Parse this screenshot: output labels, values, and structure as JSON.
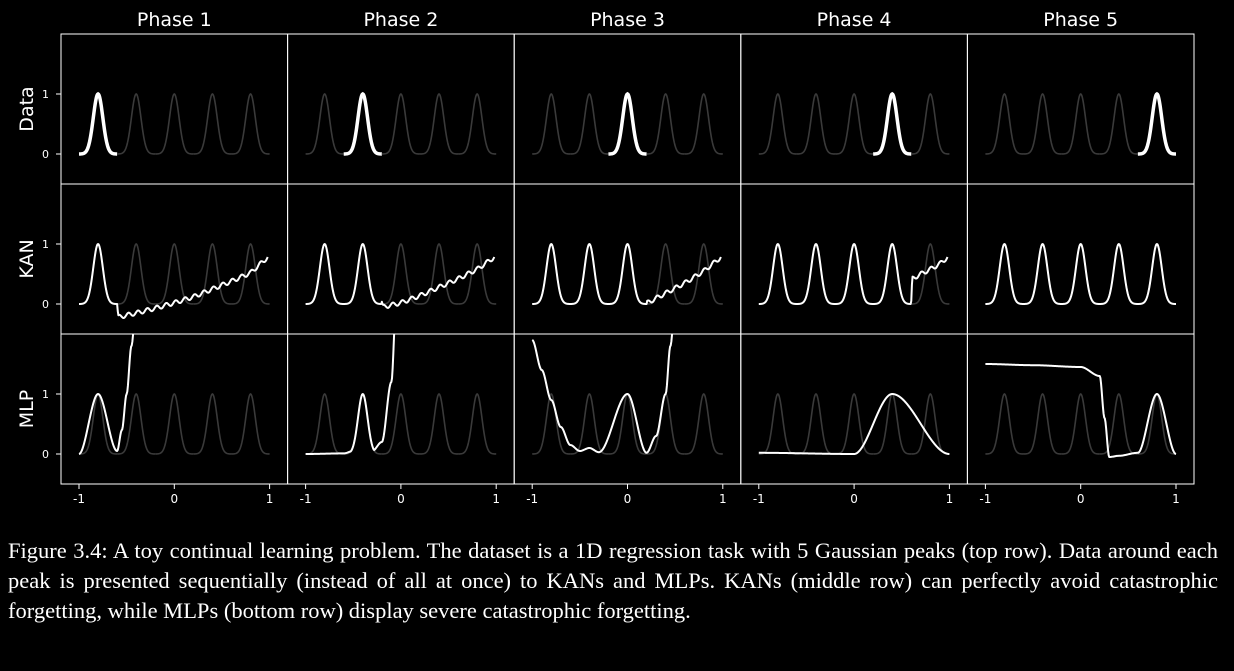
{
  "figure": {
    "column_titles": [
      "Phase 1",
      "Phase 2",
      "Phase 3",
      "Phase 4",
      "Phase 5"
    ],
    "row_labels": [
      "Data",
      "KAN",
      "MLP"
    ],
    "x_ticks": [
      "-1",
      "0",
      "1"
    ],
    "y_ticks": [
      "0",
      "1"
    ]
  },
  "caption": {
    "label": "Figure 3.4:",
    "text": "A toy continual learning problem. The dataset is a 1D regression task with 5 Gaussian peaks (top row). Data around each peak is presented sequentially (instead of all at once) to KANs and MLPs. KANs (middle row) can perfectly avoid catastrophic forgetting, while MLPs (bottom row) display severe catastrophic forgetting."
  },
  "colors": {
    "background": "#000000",
    "axes": "#ffffff",
    "faint_peaks": "#3a3a3a",
    "highlight": "#ffffff"
  },
  "chart_data": {
    "type": "line",
    "layout": "grid 3 rows x 5 columns",
    "xlim": [
      -1,
      1
    ],
    "ylim": [
      -0.5,
      2
    ],
    "grid": false,
    "peak_centers": [
      -0.8,
      -0.4,
      0.0,
      0.4,
      0.8
    ],
    "peak_sigma": 0.05,
    "panels": {
      "Data": [
        {
          "phase": 1,
          "highlighted_peak": 1
        },
        {
          "phase": 2,
          "highlighted_peak": 2
        },
        {
          "phase": 3,
          "highlighted_peak": 3
        },
        {
          "phase": 4,
          "highlighted_peak": 4
        },
        {
          "phase": 5,
          "highlighted_peak": 5
        }
      ],
      "KAN": [
        {
          "phase": 1,
          "x": [
            -1,
            -0.6,
            -0.59,
            -0.4,
            -0.2,
            0,
            0.2,
            0.4,
            0.6,
            0.8,
            0.98
          ],
          "y": [
            0,
            0.02,
            -0.22,
            -0.15,
            -0.07,
            0.02,
            0.12,
            0.25,
            0.38,
            0.52,
            0.78
          ]
        },
        {
          "phase": 2,
          "x": [
            -1,
            -0.2,
            -0.19,
            0,
            0.2,
            0.4,
            0.6,
            0.8,
            0.98
          ],
          "y": [
            0,
            0.02,
            -0.05,
            0.02,
            0.14,
            0.28,
            0.42,
            0.58,
            0.78
          ]
        },
        {
          "phase": 3,
          "x": [
            -1,
            0.2,
            0.21,
            0.4,
            0.6,
            0.8,
            0.98
          ],
          "y": [
            0,
            0.02,
            0.02,
            0.18,
            0.35,
            0.55,
            0.78
          ]
        },
        {
          "phase": 4,
          "x": [
            -1,
            0.6,
            0.61,
            0.7,
            0.8,
            0.9,
            0.98
          ],
          "y": [
            0,
            0.02,
            0.42,
            0.5,
            0.58,
            0.67,
            0.78
          ]
        },
        {
          "phase": 5,
          "x": [
            -1,
            1
          ],
          "y": [
            0,
            0
          ]
        }
      ],
      "MLP": [
        {
          "phase": 1,
          "x": [
            -1,
            -0.8,
            -0.6,
            -0.55,
            -0.5,
            -0.45,
            -0.4
          ],
          "y": [
            0,
            1,
            0.05,
            0.4,
            1.0,
            1.8,
            2.5
          ]
        },
        {
          "phase": 2,
          "x": [
            -1,
            -0.6,
            -0.5,
            -0.4,
            -0.3,
            -0.2,
            -0.1,
            -0.05
          ],
          "y": [
            0,
            0.01,
            0.05,
            1.0,
            0.05,
            0.2,
            1.2,
            2.5
          ]
        },
        {
          "phase": 3,
          "x": [
            -1,
            -0.9,
            -0.8,
            -0.7,
            -0.6,
            -0.5,
            -0.4,
            -0.3,
            0,
            0.2,
            0.3,
            0.4,
            0.45,
            0.5
          ],
          "y": [
            1.9,
            1.4,
            0.9,
            0.45,
            0.15,
            0.05,
            0.1,
            0.03,
            1.0,
            0.02,
            0.3,
            1.0,
            1.8,
            2.5
          ]
        },
        {
          "phase": 4,
          "x": [
            -1,
            0,
            0.4,
            1
          ],
          "y": [
            0.02,
            0.0,
            1.0,
            0.0
          ]
        },
        {
          "phase": 5,
          "x": [
            -1,
            -0.5,
            0,
            0.2,
            0.25,
            0.3,
            0.4,
            0.6,
            0.8,
            1
          ],
          "y": [
            1.5,
            1.48,
            1.45,
            1.3,
            0.6,
            -0.05,
            -0.03,
            0.02,
            1.0,
            0.0
          ]
        }
      ]
    }
  }
}
